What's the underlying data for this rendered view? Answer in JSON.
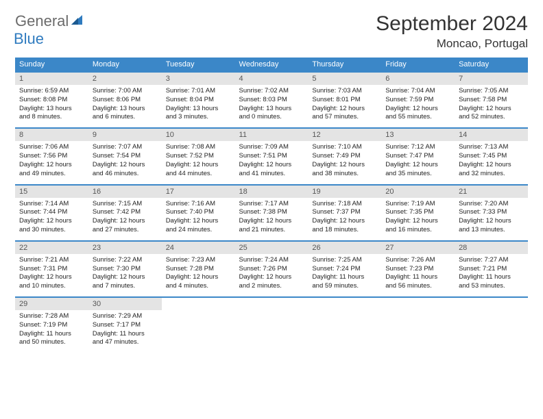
{
  "logo": {
    "general": "General",
    "blue": "Blue"
  },
  "title": "September 2024",
  "location": "Moncao, Portugal",
  "colors": {
    "header_bg": "#3b87c8",
    "header_text": "#ffffff",
    "daynum_bg": "#e4e4e4",
    "week_border": "#3b87c8",
    "logo_gray": "#6b6b6b",
    "logo_blue": "#2f7bbf"
  },
  "day_headers": [
    "Sunday",
    "Monday",
    "Tuesday",
    "Wednesday",
    "Thursday",
    "Friday",
    "Saturday"
  ],
  "weeks": [
    [
      {
        "n": "1",
        "sr": "Sunrise: 6:59 AM",
        "ss": "Sunset: 8:08 PM",
        "d1": "Daylight: 13 hours",
        "d2": "and 8 minutes."
      },
      {
        "n": "2",
        "sr": "Sunrise: 7:00 AM",
        "ss": "Sunset: 8:06 PM",
        "d1": "Daylight: 13 hours",
        "d2": "and 6 minutes."
      },
      {
        "n": "3",
        "sr": "Sunrise: 7:01 AM",
        "ss": "Sunset: 8:04 PM",
        "d1": "Daylight: 13 hours",
        "d2": "and 3 minutes."
      },
      {
        "n": "4",
        "sr": "Sunrise: 7:02 AM",
        "ss": "Sunset: 8:03 PM",
        "d1": "Daylight: 13 hours",
        "d2": "and 0 minutes."
      },
      {
        "n": "5",
        "sr": "Sunrise: 7:03 AM",
        "ss": "Sunset: 8:01 PM",
        "d1": "Daylight: 12 hours",
        "d2": "and 57 minutes."
      },
      {
        "n": "6",
        "sr": "Sunrise: 7:04 AM",
        "ss": "Sunset: 7:59 PM",
        "d1": "Daylight: 12 hours",
        "d2": "and 55 minutes."
      },
      {
        "n": "7",
        "sr": "Sunrise: 7:05 AM",
        "ss": "Sunset: 7:58 PM",
        "d1": "Daylight: 12 hours",
        "d2": "and 52 minutes."
      }
    ],
    [
      {
        "n": "8",
        "sr": "Sunrise: 7:06 AM",
        "ss": "Sunset: 7:56 PM",
        "d1": "Daylight: 12 hours",
        "d2": "and 49 minutes."
      },
      {
        "n": "9",
        "sr": "Sunrise: 7:07 AM",
        "ss": "Sunset: 7:54 PM",
        "d1": "Daylight: 12 hours",
        "d2": "and 46 minutes."
      },
      {
        "n": "10",
        "sr": "Sunrise: 7:08 AM",
        "ss": "Sunset: 7:52 PM",
        "d1": "Daylight: 12 hours",
        "d2": "and 44 minutes."
      },
      {
        "n": "11",
        "sr": "Sunrise: 7:09 AM",
        "ss": "Sunset: 7:51 PM",
        "d1": "Daylight: 12 hours",
        "d2": "and 41 minutes."
      },
      {
        "n": "12",
        "sr": "Sunrise: 7:10 AM",
        "ss": "Sunset: 7:49 PM",
        "d1": "Daylight: 12 hours",
        "d2": "and 38 minutes."
      },
      {
        "n": "13",
        "sr": "Sunrise: 7:12 AM",
        "ss": "Sunset: 7:47 PM",
        "d1": "Daylight: 12 hours",
        "d2": "and 35 minutes."
      },
      {
        "n": "14",
        "sr": "Sunrise: 7:13 AM",
        "ss": "Sunset: 7:45 PM",
        "d1": "Daylight: 12 hours",
        "d2": "and 32 minutes."
      }
    ],
    [
      {
        "n": "15",
        "sr": "Sunrise: 7:14 AM",
        "ss": "Sunset: 7:44 PM",
        "d1": "Daylight: 12 hours",
        "d2": "and 30 minutes."
      },
      {
        "n": "16",
        "sr": "Sunrise: 7:15 AM",
        "ss": "Sunset: 7:42 PM",
        "d1": "Daylight: 12 hours",
        "d2": "and 27 minutes."
      },
      {
        "n": "17",
        "sr": "Sunrise: 7:16 AM",
        "ss": "Sunset: 7:40 PM",
        "d1": "Daylight: 12 hours",
        "d2": "and 24 minutes."
      },
      {
        "n": "18",
        "sr": "Sunrise: 7:17 AM",
        "ss": "Sunset: 7:38 PM",
        "d1": "Daylight: 12 hours",
        "d2": "and 21 minutes."
      },
      {
        "n": "19",
        "sr": "Sunrise: 7:18 AM",
        "ss": "Sunset: 7:37 PM",
        "d1": "Daylight: 12 hours",
        "d2": "and 18 minutes."
      },
      {
        "n": "20",
        "sr": "Sunrise: 7:19 AM",
        "ss": "Sunset: 7:35 PM",
        "d1": "Daylight: 12 hours",
        "d2": "and 16 minutes."
      },
      {
        "n": "21",
        "sr": "Sunrise: 7:20 AM",
        "ss": "Sunset: 7:33 PM",
        "d1": "Daylight: 12 hours",
        "d2": "and 13 minutes."
      }
    ],
    [
      {
        "n": "22",
        "sr": "Sunrise: 7:21 AM",
        "ss": "Sunset: 7:31 PM",
        "d1": "Daylight: 12 hours",
        "d2": "and 10 minutes."
      },
      {
        "n": "23",
        "sr": "Sunrise: 7:22 AM",
        "ss": "Sunset: 7:30 PM",
        "d1": "Daylight: 12 hours",
        "d2": "and 7 minutes."
      },
      {
        "n": "24",
        "sr": "Sunrise: 7:23 AM",
        "ss": "Sunset: 7:28 PM",
        "d1": "Daylight: 12 hours",
        "d2": "and 4 minutes."
      },
      {
        "n": "25",
        "sr": "Sunrise: 7:24 AM",
        "ss": "Sunset: 7:26 PM",
        "d1": "Daylight: 12 hours",
        "d2": "and 2 minutes."
      },
      {
        "n": "26",
        "sr": "Sunrise: 7:25 AM",
        "ss": "Sunset: 7:24 PM",
        "d1": "Daylight: 11 hours",
        "d2": "and 59 minutes."
      },
      {
        "n": "27",
        "sr": "Sunrise: 7:26 AM",
        "ss": "Sunset: 7:23 PM",
        "d1": "Daylight: 11 hours",
        "d2": "and 56 minutes."
      },
      {
        "n": "28",
        "sr": "Sunrise: 7:27 AM",
        "ss": "Sunset: 7:21 PM",
        "d1": "Daylight: 11 hours",
        "d2": "and 53 minutes."
      }
    ],
    [
      {
        "n": "29",
        "sr": "Sunrise: 7:28 AM",
        "ss": "Sunset: 7:19 PM",
        "d1": "Daylight: 11 hours",
        "d2": "and 50 minutes."
      },
      {
        "n": "30",
        "sr": "Sunrise: 7:29 AM",
        "ss": "Sunset: 7:17 PM",
        "d1": "Daylight: 11 hours",
        "d2": "and 47 minutes."
      },
      null,
      null,
      null,
      null,
      null
    ]
  ]
}
